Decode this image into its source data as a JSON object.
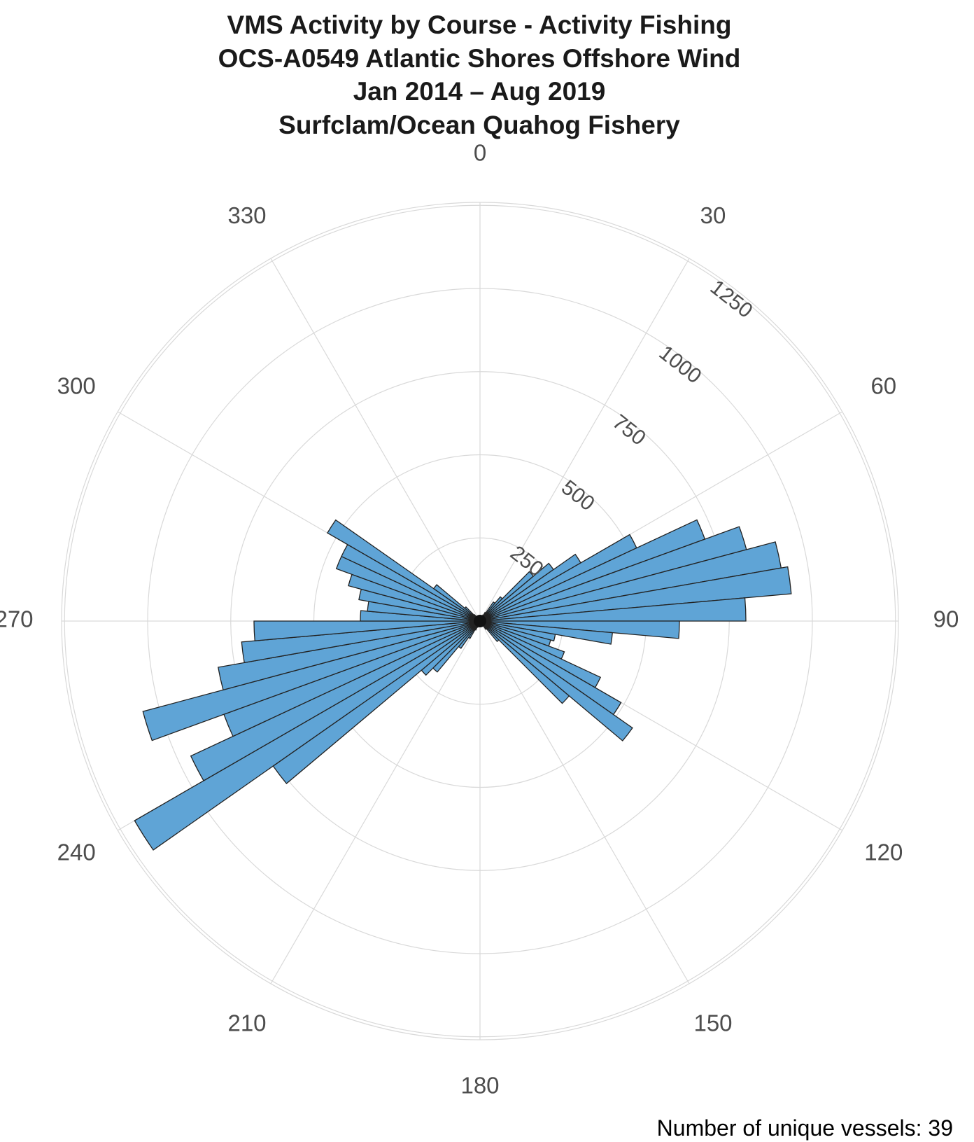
{
  "chart_data": {
    "type": "bar",
    "coordinate_system": "polar",
    "title_lines": [
      "VMS Activity by Course  - Activity Fishing",
      "OCS-A0549 Atlantic Shores Offshore Wind",
      "Jan 2014 – Aug 2019",
      "Surfclam/Ocean Quahog Fishery"
    ],
    "angle_ticks": [
      "0",
      "30",
      "60",
      "90",
      "120",
      "150",
      "180",
      "210",
      "240",
      "270",
      "300",
      "330"
    ],
    "radial_ticks": [
      "250",
      "500",
      "750",
      "1000",
      "1250"
    ],
    "radial_max": 1250,
    "bin_width_degrees": 5,
    "bar_color": "#5fa4d6",
    "categories": [
      2.5,
      7.5,
      12.5,
      17.5,
      22.5,
      27.5,
      32.5,
      37.5,
      42.5,
      47.5,
      52.5,
      57.5,
      62.5,
      67.5,
      72.5,
      77.5,
      82.5,
      87.5,
      92.5,
      97.5,
      102.5,
      107.5,
      112.5,
      117.5,
      122.5,
      127.5,
      132.5,
      137.5,
      142.5,
      147.5,
      152.5,
      157.5,
      162.5,
      167.5,
      172.5,
      177.5,
      182.5,
      187.5,
      192.5,
      197.5,
      202.5,
      207.5,
      212.5,
      217.5,
      222.5,
      227.5,
      232.5,
      237.5,
      242.5,
      247.5,
      252.5,
      257.5,
      262.5,
      267.5,
      272.5,
      277.5,
      282.5,
      287.5,
      292.5,
      297.5,
      302.5,
      307.5,
      312.5,
      317.5,
      322.5,
      327.5,
      332.5,
      337.5,
      342.5,
      347.5,
      352.5,
      357.5
    ],
    "values": [
      5,
      5,
      8,
      10,
      15,
      20,
      30,
      70,
      95,
      210,
      270,
      350,
      520,
      720,
      830,
      920,
      940,
      800,
      600,
      400,
      230,
      220,
      270,
      400,
      490,
      560,
      350,
      80,
      30,
      15,
      10,
      8,
      5,
      5,
      5,
      5,
      5,
      5,
      8,
      10,
      20,
      30,
      60,
      100,
      200,
      230,
      760,
      1200,
      960,
      820,
      1050,
      800,
      720,
      680,
      360,
      340,
      370,
      410,
      460,
      460,
      530,
      170,
      60,
      25,
      15,
      10,
      8,
      6,
      5,
      5,
      5,
      5
    ]
  },
  "footnote": "Number of unique vessels: 39"
}
